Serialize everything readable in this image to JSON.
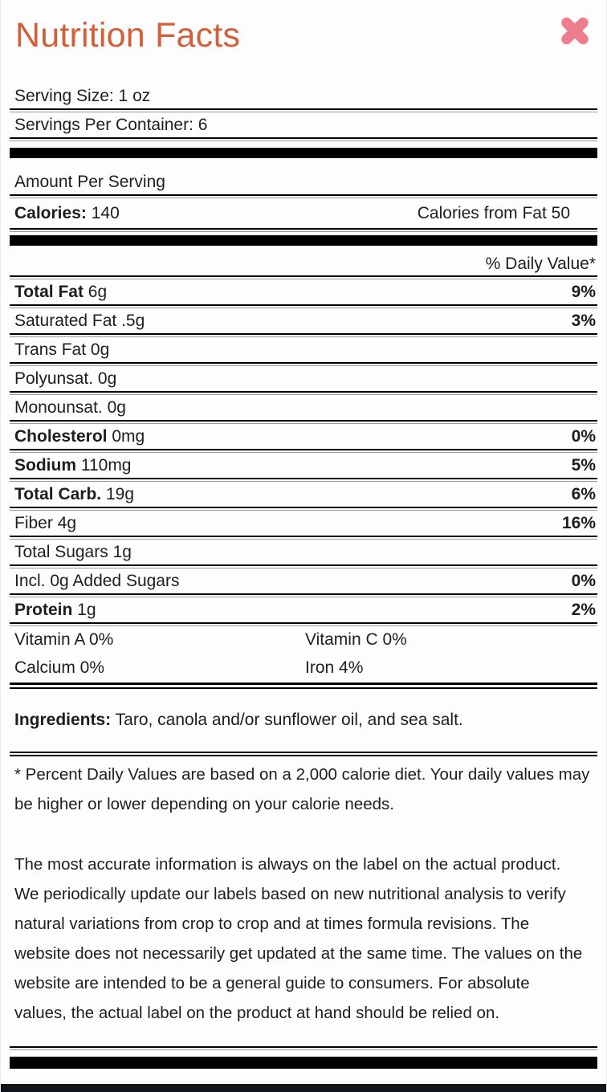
{
  "modal": {
    "title": "Nutrition Facts",
    "title_color": "#d05f3a",
    "close_icon_color": "#ee7e8e"
  },
  "serving": {
    "serving_size": "Serving Size: 1 oz",
    "servings_per_container": "Servings Per Container: 6"
  },
  "amount_per_serving": "Amount Per Serving",
  "calories": {
    "label": "Calories:",
    "value": "140",
    "from_fat": "Calories from Fat 50"
  },
  "daily_value_header": "% Daily Value*",
  "nutrients": [
    {
      "label": "Total Fat",
      "amount": "6g",
      "dv": "9%",
      "bold": true
    },
    {
      "label": "Saturated Fat",
      "amount": ".5g",
      "dv": "3%",
      "bold": false
    },
    {
      "label": "Trans Fat",
      "amount": "0g",
      "dv": "",
      "bold": false
    },
    {
      "label": "Polyunsat.",
      "amount": "0g",
      "dv": "",
      "bold": false
    },
    {
      "label": "Monounsat.",
      "amount": "0g",
      "dv": "",
      "bold": false
    },
    {
      "label": "Cholesterol",
      "amount": "0mg",
      "dv": "0%",
      "bold": true
    },
    {
      "label": "Sodium",
      "amount": "110mg",
      "dv": "5%",
      "bold": true
    },
    {
      "label": "Total Carb.",
      "amount": "19g",
      "dv": "6%",
      "bold": true
    },
    {
      "label": "Fiber",
      "amount": "4g",
      "dv": "16%",
      "bold": false
    },
    {
      "label": "Total Sugars",
      "amount": "1g",
      "dv": "",
      "bold": false
    },
    {
      "label": "Incl. 0g Added Sugars",
      "amount": "",
      "dv": "0%",
      "bold": false
    },
    {
      "label": "Protein",
      "amount": "1g",
      "dv": "2%",
      "bold": true
    }
  ],
  "vitamins": [
    {
      "left": "Vitamin A 0%",
      "right": "Vitamin C 0%"
    },
    {
      "left": "Calcium 0%",
      "right": "Iron 4%"
    }
  ],
  "ingredients": {
    "label": "Ingredients:",
    "text": "Taro, canola and/or sunflower oil, and sea salt."
  },
  "footnote": "* Percent Daily Values are based on a 2,000 calorie diet. Your daily values may be higher or lower depending on your calorie needs.",
  "disclaimer": "The most accurate information is always on the label on the actual product. We periodically update our labels based on new nutritional analysis to verify natural variations from crop to crop and at times formula revisions. The website does not necessarily get updated at the same time. The values on the website are intended to be a general guide to consumers. For absolute values, the actual label on the product at hand should be relied on."
}
